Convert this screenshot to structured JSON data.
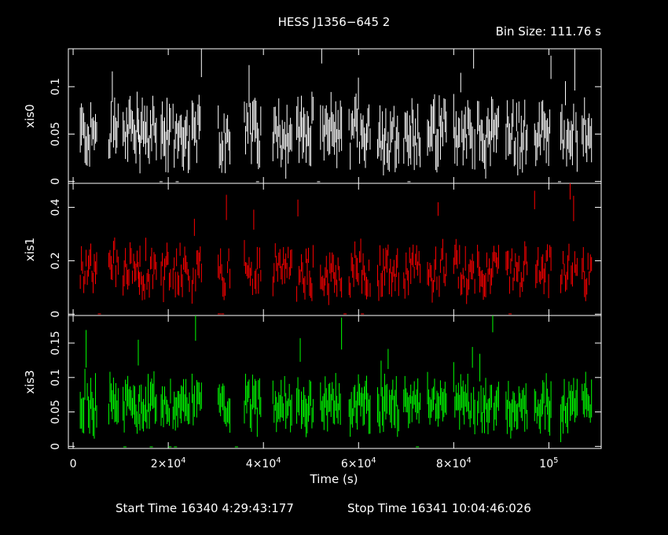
{
  "chart_data": {
    "type": "line",
    "title": "HESS J1356−645 2",
    "bin_size_label": "Bin Size: 111.76 s",
    "xlabel": "Time (s)",
    "x_ticks": [
      {
        "v": 0,
        "label": "0"
      },
      {
        "v": 20000,
        "label": "2×10",
        "exp": "4"
      },
      {
        "v": 40000,
        "label": "4×10",
        "exp": "4"
      },
      {
        "v": 60000,
        "label": "6×10",
        "exp": "4"
      },
      {
        "v": 80000,
        "label": "8×10",
        "exp": "4"
      },
      {
        "v": 100000,
        "label": "10",
        "exp": "5"
      }
    ],
    "xlim": [
      -1000,
      111000
    ],
    "footer": {
      "start_label": "Start Time 16340  4:29:43:177",
      "stop_label": "Stop Time 16341 10:04:46:026"
    },
    "segments": [
      [
        1500,
        5000
      ],
      [
        7500,
        9500
      ],
      [
        10500,
        14000
      ],
      [
        13800,
        17500
      ],
      [
        18500,
        20500
      ],
      [
        21000,
        24500
      ],
      [
        25000,
        27000
      ],
      [
        30500,
        33000
      ],
      [
        36000,
        39500
      ],
      [
        42000,
        46000
      ],
      [
        47000,
        50500
      ],
      [
        52000,
        56500
      ],
      [
        58000,
        62500
      ],
      [
        64000,
        68500
      ],
      [
        69500,
        73000
      ],
      [
        74500,
        78500
      ],
      [
        80000,
        84500
      ],
      [
        85000,
        89500
      ],
      [
        91000,
        95500
      ],
      [
        97000,
        100500
      ],
      [
        102500,
        106000
      ],
      [
        107000,
        109000
      ]
    ],
    "series": [
      {
        "name": "xis0",
        "color": "#ffffff",
        "ylim": [
          -0.002,
          0.14
        ],
        "y_ticks": [
          0,
          0.05,
          0.1
        ],
        "y_tick_labels": [
          "0",
          "0.05",
          "0.1"
        ],
        "base": 0.05,
        "spread": 0.022,
        "err": 0.017,
        "spike_max": 0.14
      },
      {
        "name": "xis1",
        "color": "#ff0000",
        "ylim": [
          -0.005,
          0.49
        ],
        "y_ticks": [
          0,
          0.2,
          0.4
        ],
        "y_tick_labels": [
          "0",
          "0.2",
          "0.4"
        ],
        "base": 0.16,
        "spread": 0.07,
        "err": 0.035,
        "spike_max": 0.49
      },
      {
        "name": "xis3",
        "color": "#00ff00",
        "ylim": [
          -0.003,
          0.19
        ],
        "y_ticks": [
          0,
          0.05,
          0.1,
          0.15
        ],
        "y_tick_labels": [
          "0",
          "0.05",
          "0.1",
          "0.15"
        ],
        "base": 0.06,
        "spread": 0.022,
        "err": 0.02,
        "spike_max": 0.19
      }
    ]
  }
}
